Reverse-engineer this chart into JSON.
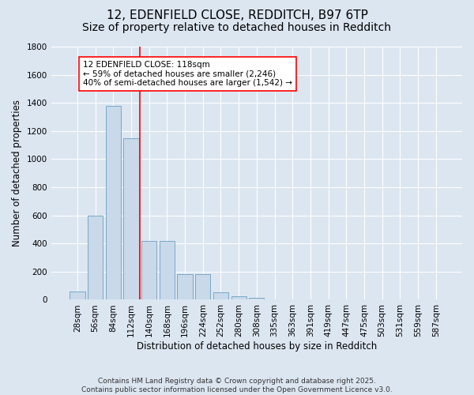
{
  "title_line1": "12, EDENFIELD CLOSE, REDDITCH, B97 6TP",
  "title_line2": "Size of property relative to detached houses in Redditch",
  "xlabel": "Distribution of detached houses by size in Redditch",
  "ylabel": "Number of detached properties",
  "categories": [
    "28sqm",
    "56sqm",
    "84sqm",
    "112sqm",
    "140sqm",
    "168sqm",
    "196sqm",
    "224sqm",
    "252sqm",
    "280sqm",
    "308sqm",
    "335sqm",
    "363sqm",
    "391sqm",
    "419sqm",
    "447sqm",
    "475sqm",
    "503sqm",
    "531sqm",
    "559sqm",
    "587sqm"
  ],
  "values": [
    60,
    600,
    1380,
    1150,
    420,
    420,
    185,
    185,
    55,
    25,
    15,
    0,
    0,
    0,
    0,
    0,
    0,
    0,
    0,
    0,
    0
  ],
  "bar_color": "#c9d9ea",
  "bar_edge_color": "#6a9fc0",
  "vline_x": 3.5,
  "vline_color": "red",
  "annotation_text": "12 EDENFIELD CLOSE: 118sqm\n← 59% of detached houses are smaller (2,246)\n40% of semi-detached houses are larger (1,542) →",
  "annotation_box_color": "white",
  "annotation_box_edge_color": "red",
  "ylim": [
    0,
    1800
  ],
  "yticks": [
    0,
    200,
    400,
    600,
    800,
    1000,
    1200,
    1400,
    1600,
    1800
  ],
  "background_color": "#dce6f1",
  "plot_background_color": "#dce6f1",
  "footer_text": "Contains HM Land Registry data © Crown copyright and database right 2025.\nContains public sector information licensed under the Open Government Licence v3.0.",
  "title_fontsize": 11,
  "subtitle_fontsize": 10,
  "axis_label_fontsize": 8.5,
  "tick_fontsize": 7.5,
  "annotation_fontsize": 7.5,
  "footer_fontsize": 6.5
}
